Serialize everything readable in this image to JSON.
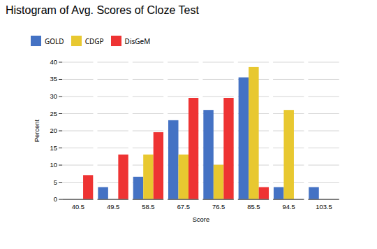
{
  "chart_data": {
    "type": "bar",
    "title": "Histogram of Avg. Scores of Cloze Test",
    "xlabel": "Score",
    "ylabel": "Percent",
    "categories": [
      40.5,
      49.5,
      58.5,
      67.5,
      76.5,
      85.5,
      94.5,
      103.5
    ],
    "series": [
      {
        "name": "GOLD",
        "color": "#4472C4",
        "values": [
          0,
          3.5,
          6.5,
          23,
          26,
          35.5,
          3.5,
          3.5
        ]
      },
      {
        "name": "CDGP",
        "color": "#E8C830",
        "values": [
          0,
          0,
          13,
          13,
          10,
          38.5,
          26,
          0
        ]
      },
      {
        "name": "DisGeM",
        "color": "#EE3333",
        "values": [
          7,
          13,
          19.5,
          29.5,
          29.5,
          3.5,
          0,
          0
        ]
      }
    ],
    "ylim": [
      0,
      40
    ],
    "yticks": [
      0,
      5,
      10,
      15,
      20,
      25,
      30,
      35,
      40
    ],
    "grid": true,
    "legend": "top"
  }
}
